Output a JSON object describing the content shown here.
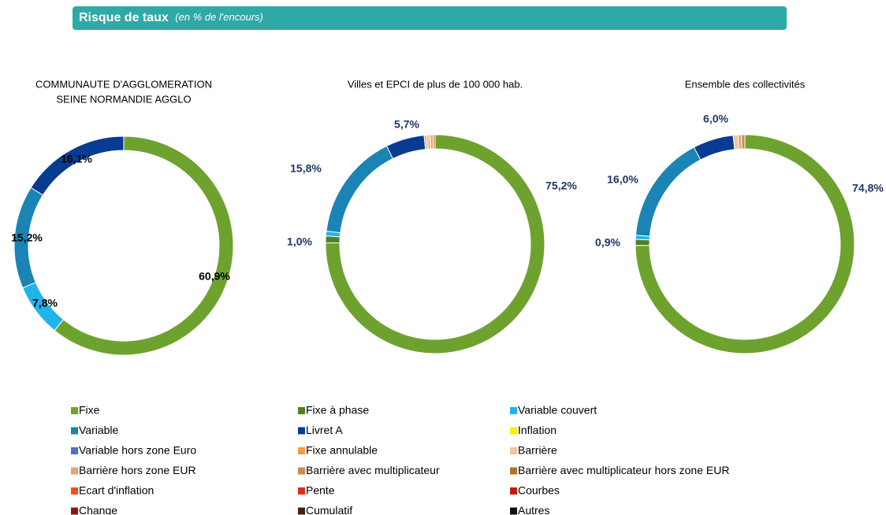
{
  "header": {
    "title": "Risque de taux",
    "subtitle": "(en % de l'encours)"
  },
  "legend": {
    "categories": [
      "Fixe",
      "Fixe à phase",
      "Variable couvert",
      "Variable",
      "Livret A",
      "Inflation",
      "Variable hors zone Euro",
      "Fixe annulable",
      "Barrière",
      "Barrière hors zone EUR",
      "Barrière avec multiplicateur",
      "Barrière avec multiplicateur hors zone EUR",
      "Ecart d'inflation",
      "Pente",
      "Courbes",
      "Change",
      "Cumulatif",
      "Autres"
    ],
    "colors": [
      "#6ea22f",
      "#4e7f2a",
      "#1fb4ea",
      "#1a84b5",
      "#083c92",
      "#ffee00",
      "#4a78b8",
      "#f59a45",
      "#f2c49a",
      "#dba77a",
      "#c98b52",
      "#a8762e",
      "#f0501e",
      "#d9301e",
      "#c01a12",
      "#8a1a10",
      "#4a2010",
      "#111111"
    ]
  },
  "chart_data": [
    {
      "type": "pie",
      "title": [
        "COMMUNAUTE D'AGGLOMERATION",
        "SEINE NORMANDIE AGGLO"
      ],
      "label_color": "#000000",
      "values": [
        60.9,
        0,
        7.8,
        15.2,
        16.1,
        0,
        0,
        0,
        0,
        0,
        0,
        0,
        0,
        0,
        0,
        0,
        0,
        0
      ],
      "value_labels": [
        "60,9%",
        null,
        "7,8%",
        "15,2%",
        "16,1%",
        null,
        null,
        null,
        null,
        null,
        null,
        null,
        null,
        null,
        null,
        null,
        null,
        null
      ]
    },
    {
      "type": "pie",
      "title": [
        "Villes et EPCI de plus de 100 000 hab."
      ],
      "label_color": "#1f3864",
      "values": [
        75.2,
        1.0,
        0.7,
        15.8,
        5.7,
        0,
        0,
        0.3,
        0.6,
        0.4,
        0.3,
        0,
        0,
        0,
        0,
        0,
        0,
        0
      ],
      "value_labels": [
        "75,2%",
        "1,0%",
        null,
        "15,8%",
        "5,7%",
        null,
        null,
        null,
        null,
        null,
        null,
        null,
        null,
        null,
        null,
        null,
        null,
        null
      ]
    },
    {
      "type": "pie",
      "title": [
        "Ensemble des collectivités"
      ],
      "label_color": "#1f3864",
      "values": [
        74.8,
        0.9,
        0.6,
        16.0,
        6.0,
        0,
        0,
        0,
        0.7,
        0.5,
        0.5,
        0,
        0,
        0,
        0,
        0,
        0,
        0
      ],
      "value_labels": [
        "74,8%",
        "0,9%",
        null,
        "16,0%",
        "6,0%",
        null,
        null,
        null,
        null,
        null,
        null,
        null,
        null,
        null,
        null,
        null,
        null,
        null
      ]
    }
  ]
}
